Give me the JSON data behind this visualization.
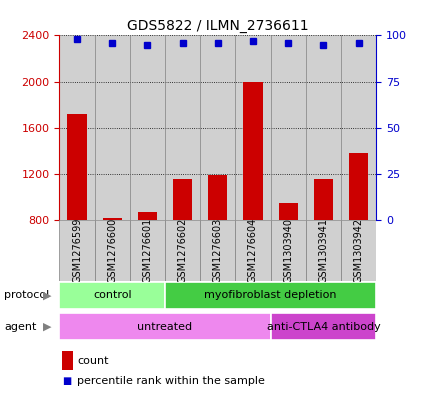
{
  "title": "GDS5822 / ILMN_2736611",
  "samples": [
    "GSM1276599",
    "GSM1276600",
    "GSM1276601",
    "GSM1276602",
    "GSM1276603",
    "GSM1276604",
    "GSM1303940",
    "GSM1303941",
    "GSM1303942"
  ],
  "counts": [
    1720,
    820,
    870,
    1160,
    1190,
    2000,
    950,
    1160,
    1380
  ],
  "percentiles": [
    98,
    96,
    95,
    96,
    96,
    97,
    96,
    95,
    96
  ],
  "ylim_left": [
    800,
    2400
  ],
  "ylim_right": [
    0,
    100
  ],
  "yticks_left": [
    800,
    1200,
    1600,
    2000,
    2400
  ],
  "yticks_right": [
    0,
    25,
    50,
    75,
    100
  ],
  "bar_color": "#cc0000",
  "dot_color": "#0000cc",
  "plot_bg": "#d0d0d0",
  "protocol_colors": [
    "#99ff99",
    "#44cc44"
  ],
  "agent_colors": [
    "#ee88ee",
    "#cc44cc"
  ],
  "protocol_labels": [
    [
      "control",
      0,
      3
    ],
    [
      "myofibroblast depletion",
      3,
      9
    ]
  ],
  "agent_labels": [
    [
      "untreated",
      0,
      6
    ],
    [
      "anti-CTLA4 antibody",
      6,
      9
    ]
  ],
  "bar_width": 0.55,
  "background_color": "#ffffff",
  "label_color_left": "#cc0000",
  "label_color_right": "#0000cc",
  "label_fontsize": 8,
  "tick_fontsize": 8,
  "sample_fontsize": 7
}
